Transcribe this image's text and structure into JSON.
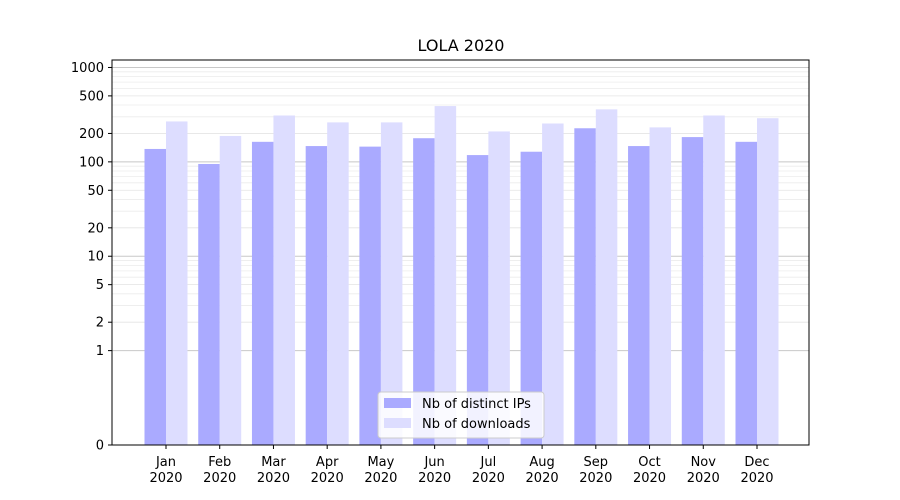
{
  "chart_data": {
    "type": "bar",
    "title": "LOLA 2020",
    "xlabel": "",
    "ylabel": "",
    "yscale": "symlog",
    "ylim": [
      0,
      1200
    ],
    "yticks": [
      0,
      1,
      2,
      5,
      10,
      20,
      50,
      100,
      200,
      500,
      1000
    ],
    "ytick_labels": [
      "0",
      "1",
      "2",
      "5",
      "10",
      "20",
      "50",
      "100",
      "200",
      "500",
      "1000"
    ],
    "categories": [
      [
        "Jan",
        "2020"
      ],
      [
        "Feb",
        "2020"
      ],
      [
        "Mar",
        "2020"
      ],
      [
        "Apr",
        "2020"
      ],
      [
        "May",
        "2020"
      ],
      [
        "Jun",
        "2020"
      ],
      [
        "Jul",
        "2020"
      ],
      [
        "Aug",
        "2020"
      ],
      [
        "Sep",
        "2020"
      ],
      [
        "Oct",
        "2020"
      ],
      [
        "Nov",
        "2020"
      ],
      [
        "Dec",
        "2020"
      ]
    ],
    "series": [
      {
        "name": "Nb of distinct IPs",
        "color": "#aaaaff",
        "values": [
          137,
          95,
          163,
          147,
          145,
          178,
          118,
          128,
          227,
          147,
          183,
          163
        ]
      },
      {
        "name": "Nb of downloads",
        "color": "#ddddff",
        "values": [
          268,
          188,
          310,
          262,
          262,
          390,
          210,
          255,
          360,
          232,
          310,
          290
        ]
      }
    ],
    "grid": true,
    "legend_position": "bottom-center"
  }
}
